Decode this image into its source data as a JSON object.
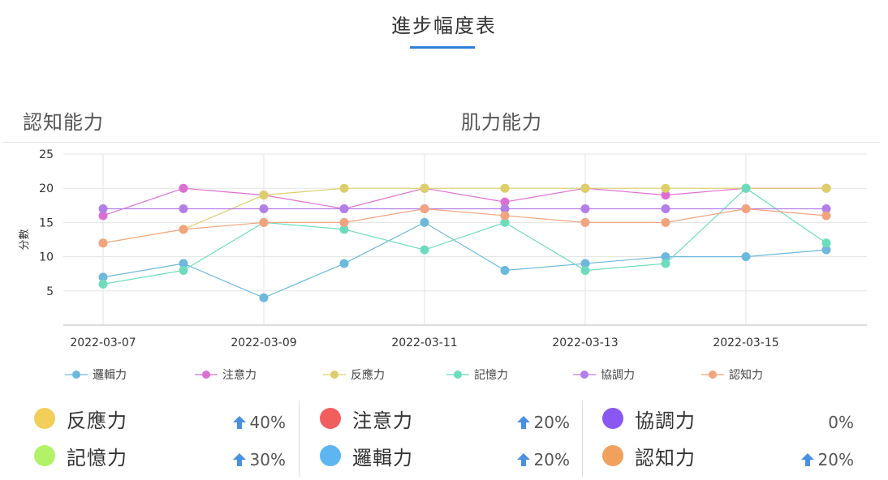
{
  "page": {
    "title": "進步幅度表",
    "tabs": [
      "認知能力",
      "肌力能力"
    ]
  },
  "colors": {
    "accent": "#2f80d9",
    "series": {
      "邏輯力": "#6db8dd",
      "注意力": "#dd6fd2",
      "反應力": "#dccf6a",
      "記憶力": "#6ddcbc",
      "協調力": "#b27fe9",
      "認知力": "#f1a47d"
    },
    "summary_dots": {
      "反應力": "#f2cf5b",
      "記憶力": "#b1f266",
      "注意力": "#f25e5e",
      "邏輯力": "#5db5f2",
      "協調力": "#8a57f2",
      "認知力": "#f2a05d"
    }
  },
  "chart_data": {
    "type": "line",
    "title": "",
    "xlabel": "",
    "ylabel": "分數",
    "ylim": [
      0,
      25
    ],
    "yticks": [
      5,
      10,
      15,
      20,
      25
    ],
    "x": [
      "2022-03-07",
      "2022-03-08",
      "2022-03-09",
      "2022-03-10",
      "2022-03-11",
      "2022-03-12",
      "2022-03-13",
      "2022-03-14",
      "2022-03-15",
      "2022-03-16"
    ],
    "xtick_labels": [
      "2022-03-07",
      "2022-03-09",
      "2022-03-11",
      "2022-03-13",
      "2022-03-15"
    ],
    "grid": true,
    "legend_position": "bottom",
    "series": [
      {
        "name": "邏輯力",
        "values": [
          7,
          9,
          4,
          9,
          15,
          8,
          9,
          10,
          10,
          11
        ]
      },
      {
        "name": "注意力",
        "values": [
          16,
          20,
          19,
          17,
          20,
          18,
          20,
          19,
          20,
          20
        ]
      },
      {
        "name": "反應力",
        "values": [
          12,
          14,
          19,
          20,
          20,
          20,
          20,
          20,
          20,
          20
        ]
      },
      {
        "name": "記憶力",
        "values": [
          6,
          8,
          15,
          14,
          11,
          15,
          8,
          9,
          20,
          12
        ]
      },
      {
        "name": "協調力",
        "values": [
          17,
          17,
          17,
          17,
          17,
          17,
          17,
          17,
          17,
          17
        ]
      },
      {
        "name": "認知力",
        "values": [
          12,
          14,
          15,
          15,
          17,
          16,
          15,
          15,
          17,
          16
        ]
      }
    ]
  },
  "summary": {
    "columns": [
      [
        {
          "name": "反應力",
          "change": "40%",
          "up": true
        },
        {
          "name": "記憶力",
          "change": "30%",
          "up": true
        }
      ],
      [
        {
          "name": "注意力",
          "change": "20%",
          "up": true
        },
        {
          "name": "邏輯力",
          "change": "20%",
          "up": true
        }
      ],
      [
        {
          "name": "協調力",
          "change": "0%",
          "up": false
        },
        {
          "name": "認知力",
          "change": "20%",
          "up": true
        }
      ]
    ]
  }
}
